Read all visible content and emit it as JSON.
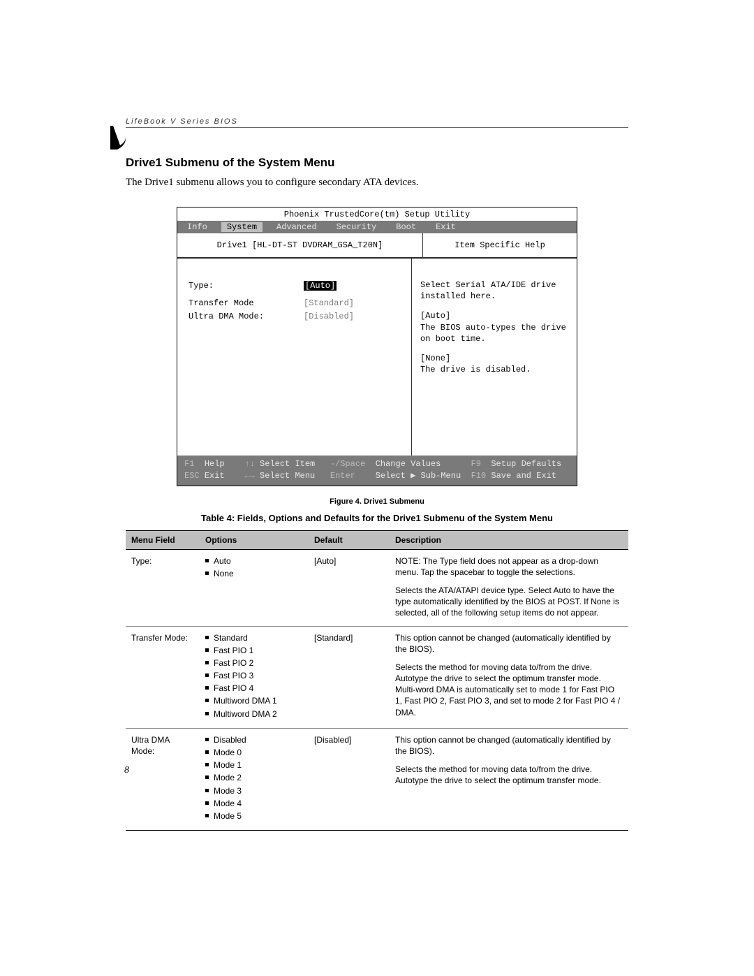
{
  "header": {
    "running": "LifeBook V Series BIOS"
  },
  "section": {
    "title": "Drive1 Submenu of the System Menu",
    "intro": "The Drive1 submenu allows you to configure secondary ATA devices."
  },
  "bios": {
    "title": "Phoenix TrustedCore(tm) Setup Utility",
    "tabs": [
      "Info",
      "System",
      "Advanced",
      "Security",
      "Boot",
      "Exit"
    ],
    "active_tab": "System",
    "sub_left": "Drive1 [HL-DT-ST DVDRAM_GSA_T20N]",
    "sub_right": "Item Specific Help",
    "fields": [
      {
        "label": "Type:",
        "value": "[Auto]",
        "selected": true
      },
      {
        "label": "Transfer Mode",
        "value": "[Standard]",
        "dim": true
      },
      {
        "label": "Ultra DMA Mode:",
        "value": "[Disabled]",
        "dim": true
      }
    ],
    "help": {
      "p1": "Select Serial ATA/IDE drive installed here.",
      "a_lbl": "[Auto]",
      "a_txt": "The BIOS auto-types the drive on boot time.",
      "n_lbl": "[None]",
      "n_txt": "The drive is disabled."
    },
    "footer": {
      "r1": {
        "k1": "F1",
        "t1": "Help",
        "k2": "↑↓",
        "t2": "Select Item",
        "k3": "-/Space",
        "t3": "Change Values",
        "k4": "F9",
        "t4": "Setup Defaults"
      },
      "r2": {
        "k1": "ESC",
        "t1": "Exit",
        "k2": "←→",
        "t2": "Select Menu",
        "k3": "Enter",
        "t3": "Select ▶ Sub-Menu",
        "k4": "F10",
        "t4": "Save and Exit"
      }
    },
    "colors": {
      "menubar_bg": "#7a7a7a",
      "menubar_fg": "#e8e8e8",
      "active_bg": "#bfbfbf"
    }
  },
  "figure_caption": "Figure 4.  Drive1 Submenu",
  "table_caption": "Table 4: Fields, Options and Defaults for the Drive1 Submenu of the System Menu",
  "table": {
    "headers": [
      "Menu Field",
      "Options",
      "Default",
      "Description"
    ],
    "rows": [
      {
        "menu": "Type:",
        "options": [
          "Auto",
          "None"
        ],
        "default": "[Auto]",
        "desc": [
          "NOTE: The Type field does not appear as a drop-down menu. Tap the spacebar to toggle the selections.",
          "Selects the ATA/ATAPI device type. Select Auto to have the type automatically identified by the BIOS at POST. If None is selected, all of the following setup items do not appear."
        ]
      },
      {
        "menu": "Transfer Mode:",
        "options": [
          "Standard",
          "Fast PIO 1",
          "Fast PIO 2",
          "Fast PIO 3",
          "Fast PIO 4",
          "Multiword DMA 1",
          "Multiword DMA 2"
        ],
        "default": "[Standard]",
        "desc": [
          "This option cannot be changed (automatically identified by the BIOS).",
          "Selects the method for moving data to/from the drive. Autotype the drive to select the optimum transfer mode.  Multi-word DMA is automatically set to mode 1 for Fast PIO 1, Fast PIO 2, Fast PIO 3, and set to mode 2 for Fast PIO 4 / DMA."
        ]
      },
      {
        "menu": "Ultra DMA Mode:",
        "options": [
          "Disabled",
          "Mode 0",
          "Mode 1",
          "Mode 2",
          "Mode 3",
          "Mode 4",
          "Mode 5"
        ],
        "default": "[Disabled]",
        "desc": [
          "This option cannot be changed (automatically identified by the BIOS).",
          "Selects the method for moving data to/from the drive. Autotype the drive to select the optimum transfer mode."
        ]
      }
    ]
  },
  "page_number": "8"
}
